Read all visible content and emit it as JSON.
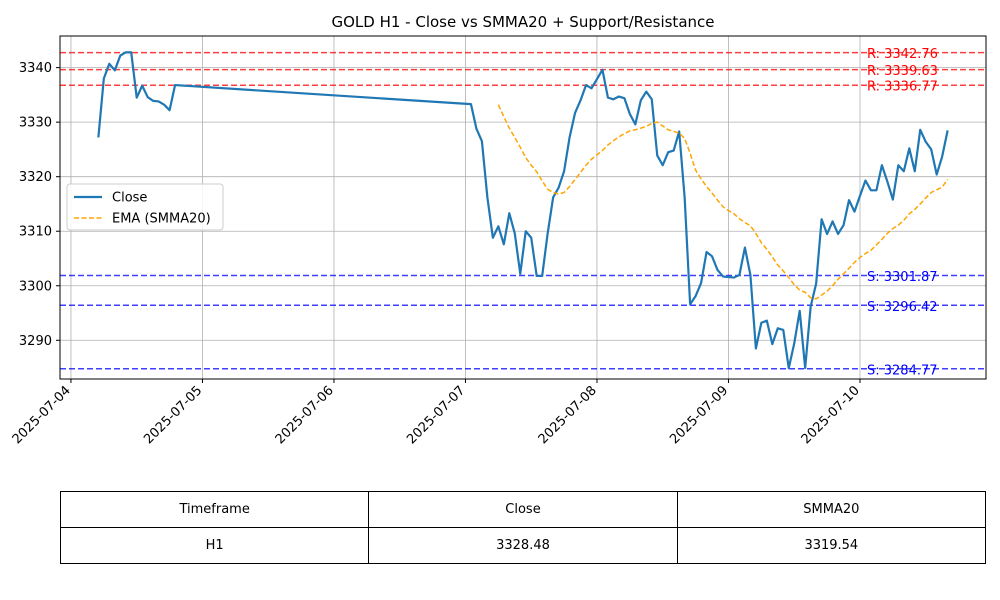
{
  "chart_data": {
    "type": "line",
    "title": "GOLD H1 - Close vs SMMA20 + Support/Resistance",
    "xlabel": "",
    "ylabel": "",
    "x_ticks": [
      "2025-07-04",
      "2025-07-05",
      "2025-07-06",
      "2025-07-07",
      "2025-07-08",
      "2025-07-09",
      "2025-07-10"
    ],
    "y_ticks": [
      3290,
      3300,
      3310,
      3320,
      3330,
      3340
    ],
    "xlim": [
      "2025-07-03 22:00",
      "2025-07-10 23:00"
    ],
    "ylim": [
      3282.9,
      3345.8
    ],
    "grid": true,
    "legend_position": "center-left",
    "series": [
      {
        "name": "Close",
        "color": "#1f77b4",
        "style": "solid",
        "points": [
          [
            "2025-07-04 05:00",
            3327.2
          ],
          [
            "2025-07-04 06:00",
            3338.0
          ],
          [
            "2025-07-04 07:00",
            3340.7
          ],
          [
            "2025-07-04 08:00",
            3339.5
          ],
          [
            "2025-07-04 09:00",
            3342.2
          ],
          [
            "2025-07-04 10:00",
            3342.8
          ],
          [
            "2025-07-04 11:00",
            3342.8
          ],
          [
            "2025-07-04 12:00",
            3334.5
          ],
          [
            "2025-07-04 13:00",
            3336.7
          ],
          [
            "2025-07-04 14:00",
            3334.6
          ],
          [
            "2025-07-04 15:00",
            3333.9
          ],
          [
            "2025-07-04 16:00",
            3333.8
          ],
          [
            "2025-07-04 17:00",
            3333.2
          ],
          [
            "2025-07-04 18:00",
            3332.2
          ],
          [
            "2025-07-04 19:00",
            3336.8
          ],
          [
            "2025-07-07 01:00",
            3333.3
          ],
          [
            "2025-07-07 02:00",
            3328.8
          ],
          [
            "2025-07-07 03:00",
            3326.5
          ],
          [
            "2025-07-07 04:00",
            3316.2
          ],
          [
            "2025-07-07 05:00",
            3308.8
          ],
          [
            "2025-07-07 06:00",
            3310.9
          ],
          [
            "2025-07-07 07:00",
            3307.6
          ],
          [
            "2025-07-07 08:00",
            3313.3
          ],
          [
            "2025-07-07 09:00",
            3309.6
          ],
          [
            "2025-07-07 10:00",
            3302.2
          ],
          [
            "2025-07-07 11:00",
            3310.0
          ],
          [
            "2025-07-07 12:00",
            3308.8
          ],
          [
            "2025-07-07 13:00",
            3301.8
          ],
          [
            "2025-07-07 14:00",
            3301.8
          ],
          [
            "2025-07-07 15:00",
            3309.6
          ],
          [
            "2025-07-07 16:00",
            3316.2
          ],
          [
            "2025-07-07 17:00",
            3318.0
          ],
          [
            "2025-07-07 18:00",
            3321.0
          ],
          [
            "2025-07-07 19:00",
            3327.2
          ],
          [
            "2025-07-07 20:00",
            3331.7
          ],
          [
            "2025-07-07 21:00",
            3334.0
          ],
          [
            "2025-07-07 22:00",
            3336.8
          ],
          [
            "2025-07-07 23:00",
            3336.2
          ],
          [
            "2025-07-08 00:00",
            3337.9
          ],
          [
            "2025-07-08 01:00",
            3339.6
          ],
          [
            "2025-07-08 02:00",
            3334.5
          ],
          [
            "2025-07-08 03:00",
            3334.2
          ],
          [
            "2025-07-08 04:00",
            3334.7
          ],
          [
            "2025-07-08 05:00",
            3334.4
          ],
          [
            "2025-07-08 06:00",
            3331.5
          ],
          [
            "2025-07-08 07:00",
            3329.6
          ],
          [
            "2025-07-08 08:00",
            3334.0
          ],
          [
            "2025-07-08 09:00",
            3335.6
          ],
          [
            "2025-07-08 10:00",
            3334.2
          ],
          [
            "2025-07-08 11:00",
            3323.9
          ],
          [
            "2025-07-08 12:00",
            3322.1
          ],
          [
            "2025-07-08 13:00",
            3324.5
          ],
          [
            "2025-07-08 14:00",
            3324.8
          ],
          [
            "2025-07-08 15:00",
            3328.3
          ],
          [
            "2025-07-08 16:00",
            3316.2
          ],
          [
            "2025-07-08 17:00",
            3296.6
          ],
          [
            "2025-07-08 18:00",
            3298.1
          ],
          [
            "2025-07-08 19:00",
            3300.5
          ],
          [
            "2025-07-08 20:00",
            3306.2
          ],
          [
            "2025-07-08 21:00",
            3305.4
          ],
          [
            "2025-07-08 22:00",
            3302.9
          ],
          [
            "2025-07-08 23:00",
            3301.7
          ],
          [
            "2025-07-09 00:00",
            3301.6
          ],
          [
            "2025-07-09 01:00",
            3301.5
          ],
          [
            "2025-07-09 02:00",
            3302.0
          ],
          [
            "2025-07-09 03:00",
            3307.0
          ],
          [
            "2025-07-09 04:00",
            3302.0
          ],
          [
            "2025-07-09 05:00",
            3288.5
          ],
          [
            "2025-07-09 06:00",
            3293.2
          ],
          [
            "2025-07-09 07:00",
            3293.6
          ],
          [
            "2025-07-09 08:00",
            3289.3
          ],
          [
            "2025-07-09 09:00",
            3292.2
          ],
          [
            "2025-07-09 10:00",
            3291.9
          ],
          [
            "2025-07-09 11:00",
            3284.9
          ],
          [
            "2025-07-09 12:00",
            3289.4
          ],
          [
            "2025-07-09 13:00",
            3295.4
          ],
          [
            "2025-07-09 14:00",
            3284.9
          ],
          [
            "2025-07-09 15:00",
            3296.2
          ],
          [
            "2025-07-09 16:00",
            3300.4
          ],
          [
            "2025-07-09 17:00",
            3312.2
          ],
          [
            "2025-07-09 18:00",
            3309.5
          ],
          [
            "2025-07-09 19:00",
            3311.8
          ],
          [
            "2025-07-09 20:00",
            3309.5
          ],
          [
            "2025-07-09 21:00",
            3311.1
          ],
          [
            "2025-07-09 22:00",
            3315.7
          ],
          [
            "2025-07-09 23:00",
            3313.6
          ],
          [
            "2025-07-10 00:00",
            3316.5
          ],
          [
            "2025-07-10 01:00",
            3319.3
          ],
          [
            "2025-07-10 02:00",
            3317.5
          ],
          [
            "2025-07-10 03:00",
            3317.5
          ],
          [
            "2025-07-10 04:00",
            3322.1
          ],
          [
            "2025-07-10 05:00",
            3319.1
          ],
          [
            "2025-07-10 06:00",
            3315.8
          ],
          [
            "2025-07-10 07:00",
            3322.1
          ],
          [
            "2025-07-10 08:00",
            3321.0
          ],
          [
            "2025-07-10 09:00",
            3325.2
          ],
          [
            "2025-07-10 10:00",
            3321.0
          ],
          [
            "2025-07-10 11:00",
            3328.6
          ],
          [
            "2025-07-10 12:00",
            3326.4
          ],
          [
            "2025-07-10 13:00",
            3325.0
          ],
          [
            "2025-07-10 14:00",
            3320.4
          ],
          [
            "2025-07-10 15:00",
            3323.7
          ],
          [
            "2025-07-10 16:00",
            3328.5
          ]
        ]
      },
      {
        "name": "EMA (SMMA20)",
        "color": "#ffa500",
        "style": "dashed",
        "points": [
          [
            "2025-07-07 06:00",
            3333.2
          ],
          [
            "2025-07-07 07:00",
            3331.0
          ],
          [
            "2025-07-07 08:00",
            3328.9
          ],
          [
            "2025-07-07 09:00",
            3327.2
          ],
          [
            "2025-07-07 10:00",
            3325.4
          ],
          [
            "2025-07-07 11:00",
            3323.5
          ],
          [
            "2025-07-07 12:00",
            3322.1
          ],
          [
            "2025-07-07 13:00",
            3320.9
          ],
          [
            "2025-07-07 14:00",
            3319.2
          ],
          [
            "2025-07-07 15:00",
            3317.7
          ],
          [
            "2025-07-07 16:00",
            3317.1
          ],
          [
            "2025-07-07 17:00",
            3316.8
          ],
          [
            "2025-07-07 18:00",
            3317.1
          ],
          [
            "2025-07-07 19:00",
            3318.2
          ],
          [
            "2025-07-07 20:00",
            3319.5
          ],
          [
            "2025-07-07 21:00",
            3320.8
          ],
          [
            "2025-07-07 22:00",
            3322.1
          ],
          [
            "2025-07-07 23:00",
            3323.2
          ],
          [
            "2025-07-08 00:00",
            3324.0
          ],
          [
            "2025-07-08 01:00",
            3324.8
          ],
          [
            "2025-07-08 02:00",
            3325.8
          ],
          [
            "2025-07-08 03:00",
            3326.6
          ],
          [
            "2025-07-08 04:00",
            3327.3
          ],
          [
            "2025-07-08 05:00",
            3327.9
          ],
          [
            "2025-07-08 06:00",
            3328.4
          ],
          [
            "2025-07-08 07:00",
            3328.6
          ],
          [
            "2025-07-08 08:00",
            3328.9
          ],
          [
            "2025-07-08 09:00",
            3329.2
          ],
          [
            "2025-07-08 10:00",
            3329.8
          ],
          [
            "2025-07-08 11:00",
            3330.0
          ],
          [
            "2025-07-08 12:00",
            3329.3
          ],
          [
            "2025-07-08 13:00",
            3328.6
          ],
          [
            "2025-07-08 14:00",
            3328.3
          ],
          [
            "2025-07-08 15:00",
            3328.0
          ],
          [
            "2025-07-08 16:00",
            3327.0
          ],
          [
            "2025-07-08 17:00",
            3324.3
          ],
          [
            "2025-07-08 18:00",
            3321.2
          ],
          [
            "2025-07-08 19:00",
            3319.6
          ],
          [
            "2025-07-08 20:00",
            3318.2
          ],
          [
            "2025-07-08 21:00",
            3317.0
          ],
          [
            "2025-07-08 22:00",
            3315.7
          ],
          [
            "2025-07-08 23:00",
            3314.5
          ],
          [
            "2025-07-09 00:00",
            3313.8
          ],
          [
            "2025-07-09 01:00",
            3313.2
          ],
          [
            "2025-07-09 02:00",
            3312.3
          ],
          [
            "2025-07-09 03:00",
            3311.6
          ],
          [
            "2025-07-09 04:00",
            3311.0
          ],
          [
            "2025-07-09 05:00",
            3309.6
          ],
          [
            "2025-07-09 06:00",
            3307.9
          ],
          [
            "2025-07-09 07:00",
            3306.7
          ],
          [
            "2025-07-09 08:00",
            3305.3
          ],
          [
            "2025-07-09 09:00",
            3303.8
          ],
          [
            "2025-07-09 10:00",
            3302.7
          ],
          [
            "2025-07-09 11:00",
            3301.5
          ],
          [
            "2025-07-09 12:00",
            3300.2
          ],
          [
            "2025-07-09 13:00",
            3299.2
          ],
          [
            "2025-07-09 14:00",
            3298.8
          ],
          [
            "2025-07-09 15:00",
            3297.8
          ],
          [
            "2025-07-09 16:00",
            3297.6
          ],
          [
            "2025-07-09 17:00",
            3298.3
          ],
          [
            "2025-07-09 18:00",
            3299.0
          ],
          [
            "2025-07-09 19:00",
            3300.0
          ],
          [
            "2025-07-09 20:00",
            3301.2
          ],
          [
            "2025-07-09 21:00",
            3302.2
          ],
          [
            "2025-07-09 22:00",
            3303.2
          ],
          [
            "2025-07-09 23:00",
            3304.3
          ],
          [
            "2025-07-10 00:00",
            3305.2
          ],
          [
            "2025-07-10 01:00",
            3305.9
          ],
          [
            "2025-07-10 02:00",
            3306.5
          ],
          [
            "2025-07-10 03:00",
            3307.5
          ],
          [
            "2025-07-10 04:00",
            3308.5
          ],
          [
            "2025-07-10 05:00",
            3309.6
          ],
          [
            "2025-07-10 06:00",
            3310.5
          ],
          [
            "2025-07-10 07:00",
            3311.1
          ],
          [
            "2025-07-10 08:00",
            3312.0
          ],
          [
            "2025-07-10 09:00",
            3313.2
          ],
          [
            "2025-07-10 10:00",
            3314.0
          ],
          [
            "2025-07-10 11:00",
            3315.0
          ],
          [
            "2025-07-10 12:00",
            3316.1
          ],
          [
            "2025-07-10 13:00",
            3317.1
          ],
          [
            "2025-07-10 14:00",
            3317.6
          ],
          [
            "2025-07-10 15:00",
            3318.1
          ],
          [
            "2025-07-10 16:00",
            3319.5
          ]
        ]
      }
    ],
    "hlines": [
      {
        "kind": "resistance",
        "value": 3342.76,
        "label": "R: 3342.76",
        "color": "#ff0000"
      },
      {
        "kind": "resistance",
        "value": 3339.63,
        "label": "R: 3339.63",
        "color": "#ff0000"
      },
      {
        "kind": "resistance",
        "value": 3336.77,
        "label": "R: 3336.77",
        "color": "#ff0000"
      },
      {
        "kind": "support",
        "value": 3301.87,
        "label": "S: 3301.87",
        "color": "#0000ff"
      },
      {
        "kind": "support",
        "value": 3296.42,
        "label": "S: 3296.42",
        "color": "#0000ff"
      },
      {
        "kind": "support",
        "value": 3284.77,
        "label": "S: 3284.77",
        "color": "#0000ff"
      }
    ]
  },
  "summary_table": {
    "headers": [
      "Timeframe",
      "Close",
      "SMMA20"
    ],
    "row": [
      "H1",
      "3328.48",
      "3319.54"
    ]
  }
}
